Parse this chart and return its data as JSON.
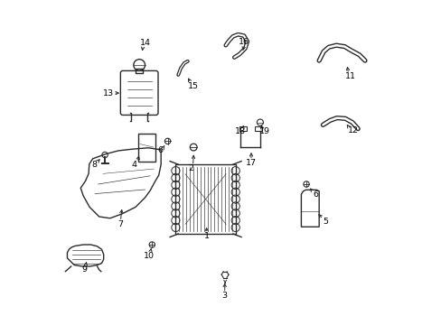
{
  "title": "",
  "background_color": "#ffffff",
  "line_color": "#2a2a2a",
  "label_color": "#000000",
  "labels_arrows": [
    [
      1,
      0.455,
      0.27,
      0.455,
      0.278,
      0.455,
      0.305
    ],
    [
      2,
      0.407,
      0.482,
      0.412,
      0.49,
      0.415,
      0.533
    ],
    [
      3,
      0.512,
      0.082,
      0.512,
      0.09,
      0.512,
      0.13
    ],
    [
      4,
      0.228,
      0.494,
      0.238,
      0.502,
      0.245,
      0.53
    ],
    [
      5,
      0.828,
      0.315,
      0.82,
      0.322,
      0.8,
      0.345
    ],
    [
      6,
      0.31,
      0.537,
      0.318,
      0.545,
      0.327,
      0.56
    ],
    [
      6,
      0.798,
      0.4,
      0.787,
      0.41,
      0.774,
      0.426
    ],
    [
      7,
      0.185,
      0.305,
      0.185,
      0.315,
      0.19,
      0.362
    ],
    [
      8,
      0.102,
      0.493,
      0.11,
      0.5,
      0.127,
      0.517
    ],
    [
      9,
      0.072,
      0.163,
      0.075,
      0.172,
      0.08,
      0.197
    ],
    [
      10,
      0.274,
      0.208,
      0.278,
      0.217,
      0.282,
      0.232
    ],
    [
      11,
      0.906,
      0.77,
      0.9,
      0.778,
      0.895,
      0.81
    ],
    [
      12,
      0.915,
      0.6,
      0.903,
      0.608,
      0.89,
      0.627
    ],
    [
      13,
      0.148,
      0.718,
      0.162,
      0.718,
      0.19,
      0.718
    ],
    [
      14,
      0.264,
      0.875,
      0.256,
      0.868,
      0.252,
      0.842
    ],
    [
      15,
      0.413,
      0.74,
      0.405,
      0.75,
      0.393,
      0.773
    ],
    [
      16,
      0.573,
      0.877,
      0.573,
      0.87,
      0.567,
      0.843
    ],
    [
      17,
      0.595,
      0.498,
      0.595,
      0.507,
      0.595,
      0.54
    ],
    [
      18,
      0.562,
      0.597,
      0.568,
      0.606,
      0.572,
      0.618
    ],
    [
      19,
      0.636,
      0.597,
      0.63,
      0.606,
      0.626,
      0.618
    ]
  ]
}
